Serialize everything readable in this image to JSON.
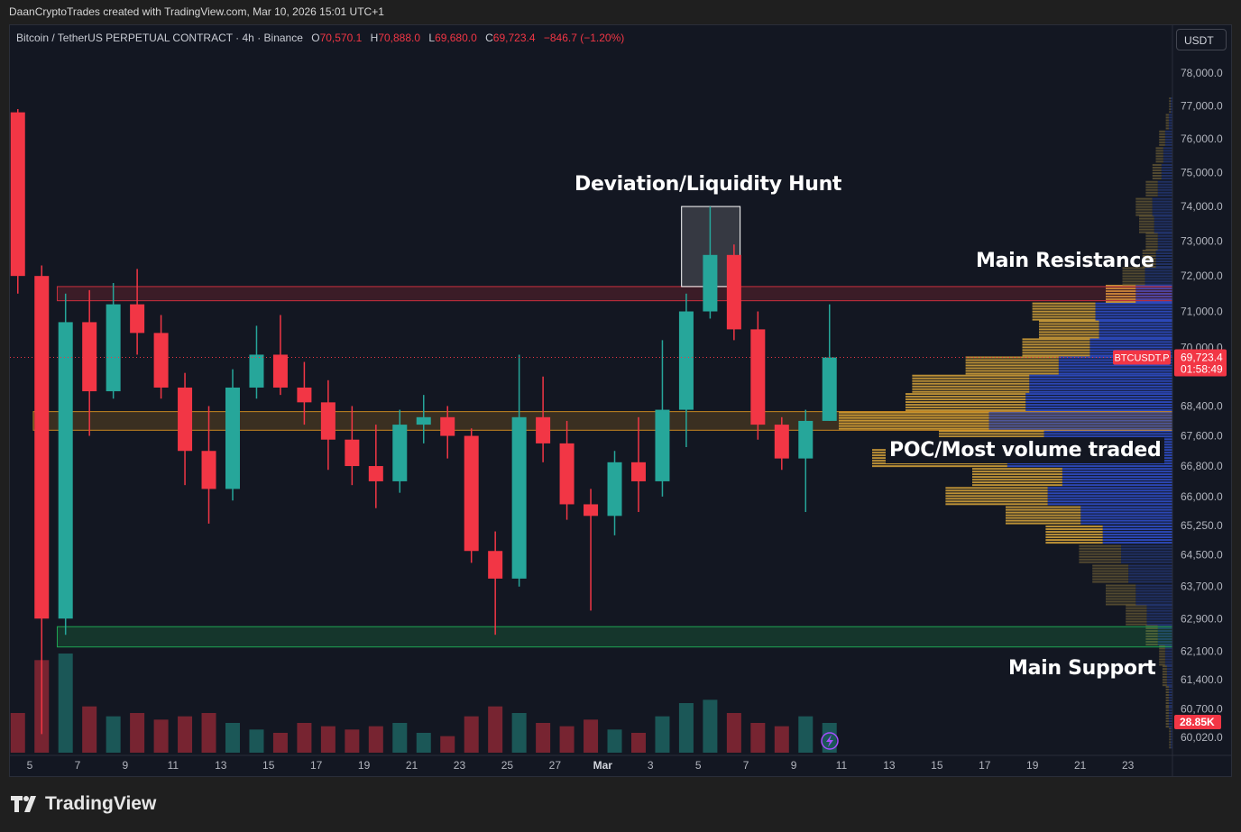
{
  "credit": "DaanCryptoTrades created with TradingView.com, Mar 10, 2026 15:01 UTC+1",
  "legend": {
    "symbol": "Bitcoin / TetherUS PERPETUAL CONTRACT · 4h · Binance",
    "o_label": "O",
    "o": "70,570.1",
    "h_label": "H",
    "h": "70,888.0",
    "l_label": "L",
    "l": "69,680.0",
    "c_label": "C",
    "c": "69,723.4",
    "change": "−846.7 (−1.20%)"
  },
  "currency_button": "USDT",
  "annotations": {
    "deviation": "Deviation/Liquidity Hunt",
    "resistance": "Main Resistance",
    "poc": "POC/Most volume traded",
    "support": "Main Support"
  },
  "price_label": {
    "ticker": "BTCUSDT.P",
    "price": "69,723.4",
    "countdown": "01:58:49"
  },
  "volume_label": "28.85K",
  "brand": "TradingView",
  "colors": {
    "up": "#26a69a",
    "down": "#f23645",
    "resistance": "#f23645",
    "poc_zone": "#f0a020",
    "support": "#22c55e",
    "profile_up": "#d9a63a",
    "profile_down": "#3050d0",
    "profile_up_dim": "#5e5233",
    "profile_down_dim": "#23356e"
  },
  "chart_data": {
    "type": "candlestick",
    "timeframe_shown": "4h",
    "scale": "log",
    "ylim": [
      59800,
      78600
    ],
    "y_ticks": [
      "78,000.0",
      "77,000.0",
      "76,000.0",
      "75,000.0",
      "74,000.0",
      "73,000.0",
      "72,000.0",
      "71,000.0",
      "70,000.0",
      "68,400.0",
      "67,600.0",
      "66,800.0",
      "66,000.0",
      "65,250.0",
      "64,500.0",
      "63,700.0",
      "62,900.0",
      "62,100.0",
      "61,400.0",
      "60,700.0",
      "60,020.0"
    ],
    "x_ticks": [
      "5",
      "7",
      "9",
      "11",
      "13",
      "15",
      "17",
      "19",
      "21",
      "23",
      "25",
      "27",
      "Mar",
      "3",
      "5",
      "7",
      "9",
      "11",
      "13",
      "15",
      "17",
      "19",
      "21",
      "23"
    ],
    "note_candles": "approximate daily OHLC read from chart",
    "dates": [
      "Feb 4",
      "Feb 5",
      "Feb 6",
      "Feb 7",
      "Feb 8",
      "Feb 9",
      "Feb 10",
      "Feb 11",
      "Feb 12",
      "Feb 13",
      "Feb 14",
      "Feb 15",
      "Feb 16",
      "Feb 17",
      "Feb 18",
      "Feb 19",
      "Feb 20",
      "Feb 21",
      "Feb 22",
      "Feb 23",
      "Feb 24",
      "Feb 25",
      "Feb 26",
      "Feb 27",
      "Feb 28",
      "Mar 1",
      "Mar 2",
      "Mar 3",
      "Mar 4",
      "Mar 5",
      "Mar 6",
      "Mar 7",
      "Mar 8",
      "Mar 9",
      "Mar 10"
    ],
    "ohlc": [
      [
        76800,
        76900,
        71500,
        72000
      ],
      [
        72000,
        72300,
        60100,
        62900
      ],
      [
        62900,
        71500,
        62500,
        70700
      ],
      [
        70700,
        71600,
        67600,
        68800
      ],
      [
        68800,
        71800,
        68600,
        71200
      ],
      [
        71200,
        72200,
        69800,
        70400
      ],
      [
        70400,
        70900,
        68600,
        68900
      ],
      [
        68900,
        69300,
        66300,
        67200
      ],
      [
        67200,
        68400,
        65300,
        66200
      ],
      [
        66200,
        69400,
        65900,
        68900
      ],
      [
        68900,
        70600,
        68600,
        69800
      ],
      [
        69800,
        70900,
        68700,
        68900
      ],
      [
        68900,
        69600,
        67900,
        68500
      ],
      [
        68500,
        69100,
        66700,
        67500
      ],
      [
        67500,
        68400,
        66300,
        66800
      ],
      [
        66800,
        67900,
        65700,
        66400
      ],
      [
        66400,
        68300,
        66100,
        67900
      ],
      [
        67900,
        68700,
        67400,
        68100
      ],
      [
        68100,
        68400,
        67000,
        67600
      ],
      [
        67600,
        67800,
        64300,
        64600
      ],
      [
        64600,
        65100,
        62500,
        63900
      ],
      [
        63900,
        69800,
        63700,
        68100
      ],
      [
        68100,
        69200,
        66900,
        67400
      ],
      [
        67400,
        68000,
        65400,
        65800
      ],
      [
        65800,
        66200,
        63100,
        65500
      ],
      [
        65500,
        67200,
        65000,
        66900
      ],
      [
        66900,
        68100,
        65600,
        66400
      ],
      [
        66400,
        70200,
        66000,
        68300
      ],
      [
        68300,
        71500,
        67300,
        71000
      ],
      [
        71000,
        74000,
        70800,
        72600
      ],
      [
        72600,
        72900,
        70200,
        70500
      ],
      [
        70500,
        71000,
        67500,
        67900
      ],
      [
        67900,
        68100,
        66700,
        67000
      ],
      [
        67000,
        68300,
        65600,
        68000
      ],
      [
        68000,
        71200,
        68000,
        69723.4
      ]
    ],
    "volume_k": [
      60,
      140,
      150,
      70,
      55,
      60,
      50,
      55,
      60,
      45,
      35,
      30,
      45,
      40,
      35,
      40,
      45,
      30,
      25,
      55,
      70,
      60,
      45,
      40,
      50,
      35,
      30,
      55,
      75,
      80,
      60,
      45,
      40,
      55,
      45
    ],
    "last_price": 69723.4,
    "zones": {
      "resistance": {
        "from": 71300,
        "to": 71700,
        "start": "Feb 6"
      },
      "poc": {
        "from": 67750,
        "to": 68250,
        "start": "Feb 5"
      },
      "support": {
        "from": 62200,
        "to": 62700,
        "start": "Feb 6"
      },
      "deviation_box": {
        "from": 71700,
        "to": 74000,
        "start": "Mar 4",
        "end": "Mar 6"
      }
    },
    "volume_profile": {
      "value_area": [
        65000,
        71500
      ],
      "levels": [
        60000,
        60500,
        61000,
        61500,
        62000,
        62500,
        63000,
        63500,
        64000,
        64500,
        65000,
        65500,
        66000,
        66500,
        67000,
        67500,
        68000,
        68500,
        69000,
        69500,
        70000,
        70500,
        71000,
        71500,
        72000,
        72500,
        73000,
        73500,
        74000,
        74500,
        75000,
        75500,
        76000,
        76500,
        77000
      ],
      "relative_volume": [
        1,
        2,
        2,
        3,
        4,
        8,
        14,
        20,
        24,
        28,
        38,
        50,
        68,
        60,
        90,
        70,
        100,
        80,
        78,
        62,
        45,
        40,
        42,
        20,
        15,
        9,
        8,
        10,
        11,
        8,
        6,
        5,
        4,
        2,
        1
      ]
    }
  }
}
